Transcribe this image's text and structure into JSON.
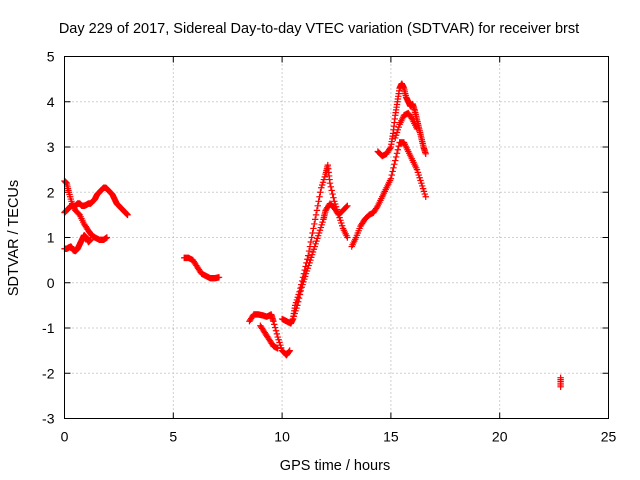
{
  "chart_data": {
    "type": "scatter",
    "title": "Day 229 of 2017, Sidereal Day-to-day VTEC variation (SDTVAR) for receiver brst",
    "xlabel": "GPS time / hours",
    "ylabel": "SDTVAR / TECUs",
    "xlim": [
      0,
      25
    ],
    "ylim": [
      -3,
      5
    ],
    "xticks": [
      "0",
      "5",
      "10",
      "15",
      "20",
      "25"
    ],
    "yticks": [
      "-3",
      "-2",
      "-1",
      "0",
      "1",
      "2",
      "3",
      "4",
      "5"
    ],
    "grid": true,
    "marker": "plus",
    "color": "#ff0000",
    "segments": [
      {
        "x": [
          0.0,
          0.1,
          0.2,
          0.35,
          0.5,
          0.7,
          0.9,
          1.1,
          1.25,
          1.4,
          1.6,
          1.8,
          1.95
        ],
        "y": [
          2.25,
          2.2,
          2.0,
          1.75,
          1.6,
          1.5,
          1.3,
          1.15,
          1.05,
          1.0,
          0.95,
          0.95,
          1.0
        ]
      },
      {
        "x": [
          0.0,
          0.1,
          0.2,
          0.3,
          0.4,
          0.5,
          0.6,
          0.7,
          0.8,
          0.9,
          1.0,
          1.1,
          1.2,
          1.3,
          1.4,
          1.5,
          1.6,
          1.7,
          1.8,
          1.9,
          2.0,
          2.1,
          2.2,
          2.3,
          2.4,
          2.5,
          2.6,
          2.7,
          2.8,
          2.9
        ],
        "y": [
          1.55,
          1.6,
          1.65,
          1.7,
          1.7,
          1.7,
          1.75,
          1.75,
          1.7,
          1.7,
          1.72,
          1.75,
          1.75,
          1.8,
          1.85,
          1.95,
          2.0,
          2.05,
          2.1,
          2.1,
          2.05,
          2.0,
          1.95,
          1.85,
          1.75,
          1.7,
          1.65,
          1.6,
          1.55,
          1.5
        ]
      },
      {
        "x": [
          0.0,
          0.1,
          0.2,
          0.3,
          0.4,
          0.5,
          0.6,
          0.7,
          0.8,
          0.9,
          1.0,
          1.1,
          1.2
        ],
        "y": [
          0.75,
          0.75,
          0.78,
          0.8,
          0.72,
          0.7,
          0.75,
          0.85,
          0.95,
          1.05,
          1.0,
          0.9,
          0.95
        ]
      },
      {
        "x": [
          5.5,
          5.7,
          5.9,
          6.1,
          6.3,
          6.5,
          6.7,
          6.9,
          7.1
        ],
        "y": [
          0.55,
          0.55,
          0.5,
          0.35,
          0.2,
          0.15,
          0.1,
          0.1,
          0.12
        ]
      },
      {
        "x": [
          8.5,
          8.7,
          8.9,
          9.1,
          9.3,
          9.5,
          9.6,
          9.8,
          10.0,
          10.2,
          10.35
        ],
        "y": [
          -0.85,
          -0.7,
          -0.7,
          -0.72,
          -0.75,
          -0.7,
          -0.85,
          -1.2,
          -1.5,
          -1.6,
          -1.5
        ]
      },
      {
        "x": [
          9.0,
          9.2,
          9.4,
          9.6,
          9.8
        ],
        "y": [
          -0.95,
          -1.1,
          -1.25,
          -1.4,
          -1.45
        ]
      },
      {
        "x": [
          10.0,
          10.2,
          10.4,
          10.5,
          10.6,
          10.8,
          11.0,
          11.2,
          11.4,
          11.6,
          11.8,
          12.0,
          12.1,
          12.2,
          12.4,
          12.6,
          12.8,
          13.0
        ],
        "y": [
          -0.8,
          -0.85,
          -0.9,
          -0.8,
          -0.5,
          -0.2,
          0.2,
          0.6,
          1.1,
          1.6,
          2.1,
          2.4,
          2.6,
          2.2,
          1.8,
          1.5,
          1.2,
          1.0
        ]
      },
      {
        "x": [
          10.5,
          10.7,
          10.9,
          11.1,
          11.3,
          11.5,
          11.7,
          11.9,
          12.0,
          12.2,
          12.4,
          12.6,
          12.8,
          13.0
        ],
        "y": [
          -0.8,
          -0.5,
          -0.1,
          0.2,
          0.5,
          0.8,
          1.1,
          1.4,
          1.6,
          1.75,
          1.65,
          1.5,
          1.6,
          1.7
        ]
      },
      {
        "x": [
          13.2,
          13.4,
          13.6,
          13.8,
          14.0,
          14.2,
          14.4,
          14.6,
          14.8,
          15.0,
          15.2,
          15.4,
          15.6,
          15.8,
          16.0,
          16.2,
          16.4,
          16.6
        ],
        "y": [
          0.8,
          1.0,
          1.25,
          1.4,
          1.5,
          1.55,
          1.7,
          1.9,
          2.1,
          2.3,
          2.7,
          3.1,
          3.1,
          2.9,
          2.7,
          2.5,
          2.2,
          1.9
        ]
      },
      {
        "x": [
          14.4,
          14.6,
          14.8,
          15.0,
          15.1,
          15.2,
          15.3,
          15.4,
          15.5,
          15.6,
          15.7,
          15.8,
          15.9,
          16.0,
          16.1,
          16.2,
          16.3,
          16.4,
          16.5,
          16.6
        ],
        "y": [
          2.9,
          2.8,
          2.85,
          3.0,
          3.3,
          3.7,
          4.0,
          4.3,
          4.4,
          4.3,
          4.1,
          4.0,
          3.9,
          3.95,
          3.8,
          3.6,
          3.4,
          3.2,
          3.0,
          2.85
        ]
      },
      {
        "x": [
          15.2,
          15.4,
          15.6,
          15.8,
          16.0,
          16.2
        ],
        "y": [
          3.2,
          3.5,
          3.7,
          3.75,
          3.6,
          3.4
        ]
      },
      {
        "x": [
          22.8,
          22.8
        ],
        "y": [
          -2.3,
          -2.1
        ]
      }
    ]
  }
}
